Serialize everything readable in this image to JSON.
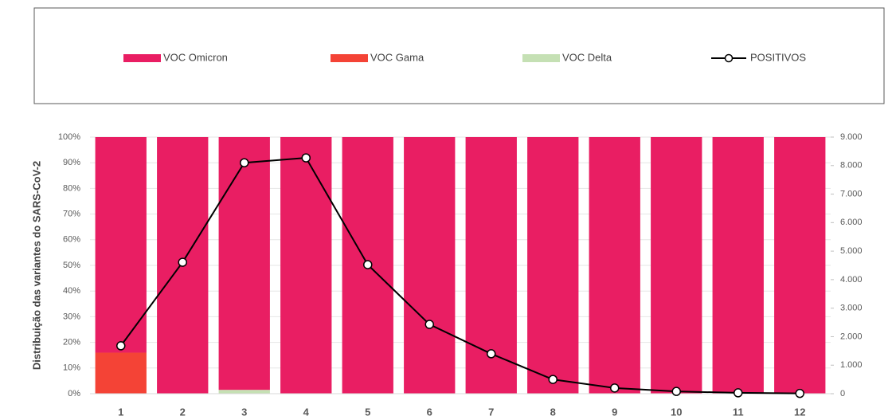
{
  "chart_data": {
    "type": "bar",
    "stacked": true,
    "y_axis_label": "Distribuição das variantes do SARS-CoV-2",
    "categories": [
      "1",
      "2",
      "3",
      "4",
      "5",
      "6",
      "7",
      "8",
      "9",
      "10",
      "11",
      "12"
    ],
    "series": [
      {
        "name": "VOC Omicron",
        "color": "#e91e63",
        "values": [
          84,
          100,
          98.5,
          100,
          100,
          100,
          100,
          100,
          100,
          100,
          100,
          100
        ]
      },
      {
        "name": "VOC Gama",
        "color": "#f44336",
        "values": [
          16,
          0,
          0,
          0,
          0,
          0,
          0,
          0,
          0,
          0,
          0,
          0
        ]
      },
      {
        "name": "VOC Delta",
        "color": "#c5e0b4",
        "values": [
          0,
          0,
          1.5,
          0,
          0,
          0,
          0,
          0,
          0,
          0,
          0,
          0
        ]
      },
      {
        "name": "POSITIVOS",
        "type": "line",
        "axis": "y2",
        "color": "#000000",
        "values": [
          1680,
          4610,
          8100,
          8270,
          4525,
          2430,
          1400,
          500,
          200,
          80,
          30,
          10
        ]
      }
    ],
    "ylim": [
      0,
      100
    ],
    "yticks": [
      {
        "value": 0,
        "label": "0%"
      },
      {
        "value": 10,
        "label": "10%"
      },
      {
        "value": 20,
        "label": "20%"
      },
      {
        "value": 30,
        "label": "30%"
      },
      {
        "value": 40,
        "label": "40%"
      },
      {
        "value": 50,
        "label": "50%"
      },
      {
        "value": 60,
        "label": "60%"
      },
      {
        "value": 70,
        "label": "70%"
      },
      {
        "value": 80,
        "label": "80%"
      },
      {
        "value": 90,
        "label": "90%"
      },
      {
        "value": 100,
        "label": "100%"
      }
    ],
    "y2lim": [
      0,
      9000
    ],
    "y2ticks": [
      0,
      {
        "value": 1000,
        "label": "1.000"
      },
      {
        "value": 2000,
        "label": "2.000"
      },
      {
        "value": 3000,
        "label": "3.000"
      },
      {
        "value": 4000,
        "label": "4.000"
      },
      {
        "value": 5000,
        "label": "5.000"
      },
      {
        "value": 6000,
        "label": "6.000"
      },
      {
        "value": 7000,
        "label": "7.000"
      },
      {
        "value": 8000,
        "label": "8.000"
      },
      {
        "value": 9000,
        "label": "9.000"
      }
    ],
    "grid": true,
    "legend": "top"
  }
}
